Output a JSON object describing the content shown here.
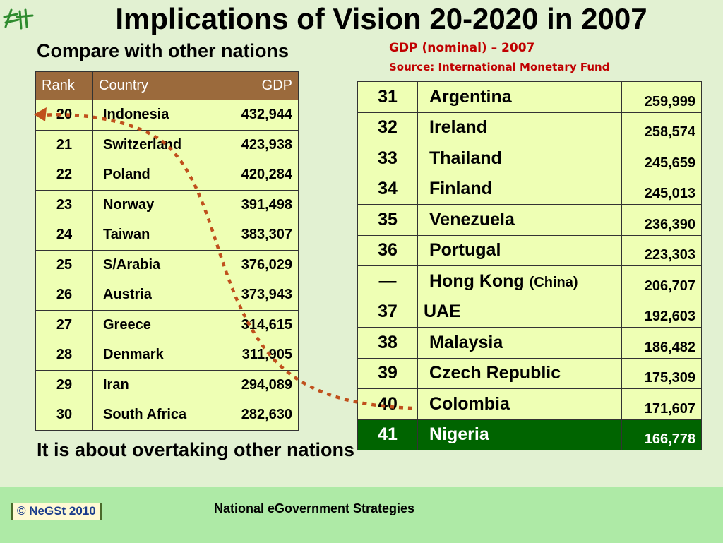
{
  "title": "Implications of Vision 20-2020 in 2007",
  "subtitle": "Compare with other nations",
  "gdp_note": {
    "line1": "GDP (nominal) – 2007",
    "line2": "Source: International Monetary Fund"
  },
  "left_table": {
    "headers": {
      "rank": "Rank",
      "country": "Country",
      "gdp": "GDP"
    },
    "rows": [
      {
        "rank": "20",
        "country": "Indonesia",
        "gdp": "432,944"
      },
      {
        "rank": "21",
        "country": "Switzerland",
        "gdp": "423,938"
      },
      {
        "rank": "22",
        "country": "Poland",
        "gdp": "420,284"
      },
      {
        "rank": "23",
        "country": "Norway",
        "gdp": "391,498"
      },
      {
        "rank": "24",
        "country": "Taiwan",
        "gdp": "383,307"
      },
      {
        "rank": "25",
        "country": "S/Arabia",
        "gdp": "376,029"
      },
      {
        "rank": "26",
        "country": "Austria",
        "gdp": "373,943"
      },
      {
        "rank": "27",
        "country": "Greece",
        "gdp": "314,615"
      },
      {
        "rank": "28",
        "country": "Denmark",
        "gdp": "311,905"
      },
      {
        "rank": "29",
        "country": "Iran",
        "gdp": "294,089"
      },
      {
        "rank": "30",
        "country": "South Africa",
        "gdp": "282,630"
      }
    ]
  },
  "right_table": {
    "rows": [
      {
        "rank": "31",
        "country": "Argentina",
        "gdp": "259,999"
      },
      {
        "rank": "32",
        "country": "Ireland",
        "gdp": "258,574"
      },
      {
        "rank": "33",
        "country": "Thailand",
        "gdp": "245,659"
      },
      {
        "rank": "34",
        "country": "Finland",
        "gdp": "245,013"
      },
      {
        "rank": "35",
        "country": "Venezuela",
        "gdp": "236,390"
      },
      {
        "rank": "36",
        "country": "Portugal",
        "gdp": "223,303"
      },
      {
        "rank": "—",
        "country": "Hong Kong",
        "country_suffix": "(China)",
        "gdp": "206,707"
      },
      {
        "rank": "37",
        "country": "UAE",
        "gdp": "192,603"
      },
      {
        "rank": "38",
        "country": "Malaysia",
        "gdp": "186,482"
      },
      {
        "rank": "39",
        "country": "Czech Republic",
        "gdp": "175,309"
      },
      {
        "rank": "40",
        "country": "Colombia",
        "gdp": "171,607"
      },
      {
        "rank": "41",
        "country": "Nigeria",
        "gdp": "166,778"
      }
    ],
    "highlight_color": "#006400"
  },
  "overtake_text": "It is about overtaking other nations",
  "footer": {
    "copyright": "© NeGSt 2010",
    "text": "National eGovernment Strategies"
  },
  "colors": {
    "background": "#e2f1d2",
    "header_brown": "#9b6a3c",
    "cell_yellow": "#eeffb4",
    "accent_red": "#c00000",
    "arrow": "#c0501c",
    "footer_green": "#aeeaa6"
  },
  "icons": {
    "logo": "negst-logo-icon",
    "arrow": "dotted-curved-arrow"
  }
}
